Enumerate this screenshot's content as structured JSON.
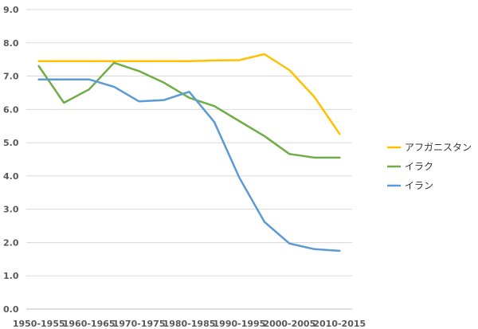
{
  "chart_data": {
    "type": "line",
    "title": "",
    "xlabel": "",
    "ylabel": "",
    "ylim": [
      0,
      9
    ],
    "yticks": [
      "0.0",
      "1.0",
      "2.0",
      "3.0",
      "4.0",
      "5.0",
      "6.0",
      "7.0",
      "8.0",
      "9.0"
    ],
    "x_tick_labels": [
      "1950-1955",
      "1960-1965",
      "1970-1975",
      "1980-1985",
      "1990-1995",
      "2000-2005",
      "2010-2015"
    ],
    "categories": [
      "1950-1955",
      "1955-1960",
      "1960-1965",
      "1965-1970",
      "1970-1975",
      "1975-1980",
      "1980-1985",
      "1985-1990",
      "1990-1995",
      "1995-2000",
      "2000-2005",
      "2005-2010",
      "2010-2015"
    ],
    "grid": "horizontal",
    "legend_position": "right",
    "series": [
      {
        "name": "アフガニスタン",
        "color": "#FFC000",
        "values": [
          7.45,
          7.45,
          7.45,
          7.45,
          7.45,
          7.45,
          7.45,
          7.47,
          7.48,
          7.66,
          7.18,
          6.37,
          5.26
        ]
      },
      {
        "name": "イラク",
        "color": "#70AD47",
        "values": [
          7.3,
          6.2,
          6.6,
          7.4,
          7.15,
          6.8,
          6.35,
          6.1,
          5.65,
          5.2,
          4.66,
          4.55,
          4.55
        ]
      },
      {
        "name": "イラン",
        "color": "#5B9BD5",
        "values": [
          6.9,
          6.9,
          6.9,
          6.68,
          6.24,
          6.28,
          6.53,
          5.62,
          3.95,
          2.62,
          1.97,
          1.8,
          1.75
        ]
      }
    ]
  }
}
